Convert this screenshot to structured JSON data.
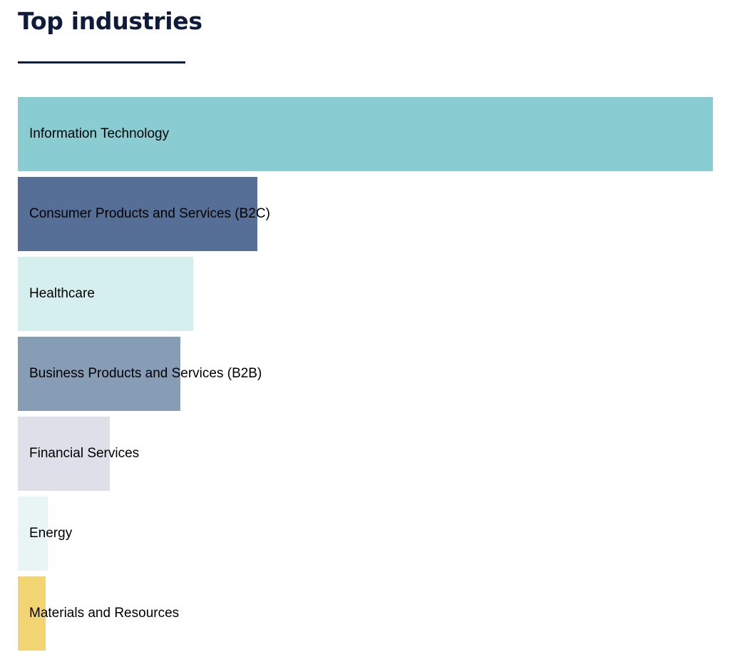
{
  "title": "Top industries",
  "chart_data": {
    "type": "bar",
    "orientation": "horizontal",
    "title": "Top industries",
    "categories": [
      "Information Technology",
      "Consumer Products and Services (B2C)",
      "Healthcare",
      "Business Products and Services (B2B)",
      "Financial Services",
      "Energy",
      "Materials and Resources"
    ],
    "values": [
      100,
      34.5,
      25.2,
      23.4,
      13.2,
      4.3,
      4.0
    ],
    "colors": [
      "#89cdd3",
      "#566f96",
      "#d5efee",
      "#879cb5",
      "#dedfe8",
      "#e9f5f5",
      "#f2d472"
    ],
    "xlim": [
      0,
      100
    ],
    "grid": false
  }
}
